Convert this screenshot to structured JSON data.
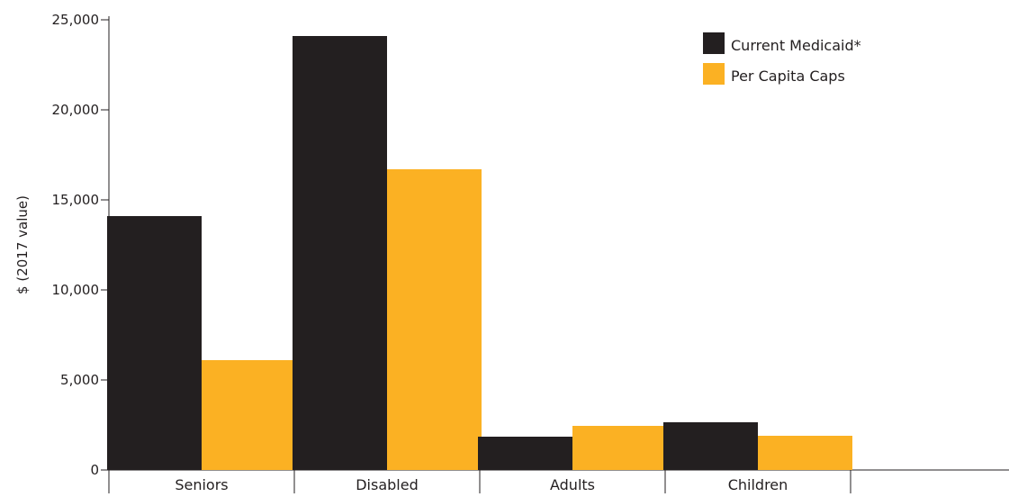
{
  "chart_data": {
    "type": "bar",
    "title": "",
    "xlabel": "",
    "ylabel": "$ (2017 value)",
    "ylim": [
      0,
      25000
    ],
    "yticks": [
      0,
      5000,
      10000,
      15000,
      20000,
      25000
    ],
    "ytick_labels": [
      "0",
      "5,000",
      "10,000",
      "15,000",
      "20,000",
      "25,000"
    ],
    "categories": [
      "Seniors",
      "Disabled",
      "Adults",
      "Children"
    ],
    "empty_slots_after_categories": 2,
    "series": [
      {
        "name": "Current Medicaid*",
        "color": "#231f20",
        "values": [
          14100,
          24100,
          1850,
          2650
        ]
      },
      {
        "name": "Per Capita Caps",
        "color": "#fbb123",
        "values": [
          6100,
          16700,
          2450,
          1900
        ]
      }
    ],
    "grid": false,
    "legend_position": "top-right"
  }
}
